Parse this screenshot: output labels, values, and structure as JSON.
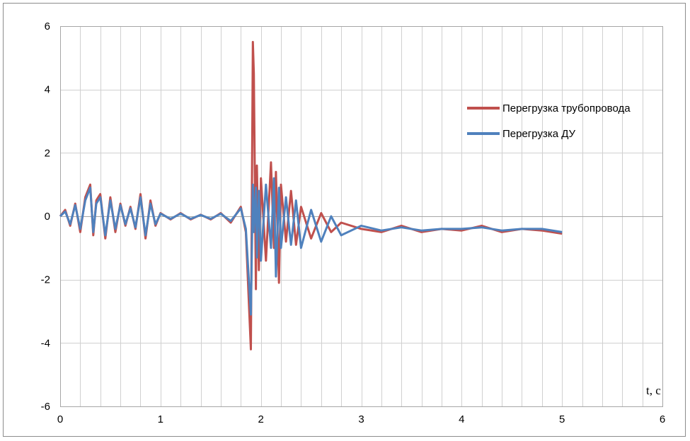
{
  "chart_data": {
    "type": "line",
    "title": "",
    "xlabel": "t, c",
    "ylabel": "",
    "xlim": [
      0,
      6
    ],
    "ylim": [
      -6,
      6
    ],
    "x_ticks": [
      "0",
      "1",
      "2",
      "3",
      "4",
      "5",
      "6"
    ],
    "y_ticks": [
      "6",
      "4",
      "2",
      "0",
      "-2",
      "-4",
      "-6"
    ],
    "x_minor_step": 0.2,
    "y_major_step": 2,
    "grid": true,
    "legend_position": "right",
    "series": [
      {
        "name": "Перегрузка трубопровода",
        "color": "#c0504d",
        "x": [
          0,
          0.05,
          0.1,
          0.15,
          0.2,
          0.25,
          0.3,
          0.33,
          0.36,
          0.4,
          0.45,
          0.5,
          0.55,
          0.6,
          0.65,
          0.7,
          0.75,
          0.8,
          0.85,
          0.9,
          0.95,
          1.0,
          1.1,
          1.2,
          1.3,
          1.4,
          1.5,
          1.6,
          1.7,
          1.8,
          1.85,
          1.9,
          1.92,
          1.93,
          1.95,
          1.96,
          1.98,
          2.0,
          2.05,
          2.1,
          2.13,
          2.15,
          2.18,
          2.2,
          2.25,
          2.3,
          2.35,
          2.4,
          2.5,
          2.6,
          2.7,
          2.8,
          3.0,
          3.2,
          3.4,
          3.6,
          3.8,
          4.0,
          4.2,
          4.4,
          4.6,
          4.8,
          5.0
        ],
        "y": [
          0,
          0.2,
          -0.3,
          0.4,
          -0.5,
          0.6,
          1.0,
          -0.6,
          0.5,
          0.7,
          -0.7,
          0.6,
          -0.5,
          0.4,
          -0.3,
          0.3,
          -0.4,
          0.7,
          -0.7,
          0.5,
          -0.3,
          0.1,
          -0.1,
          0.1,
          -0.1,
          0.05,
          -0.1,
          0.1,
          -0.2,
          0.3,
          -0.5,
          -4.2,
          5.5,
          4.5,
          -2.3,
          1.6,
          -1.7,
          1.2,
          -1.4,
          1.7,
          -1.0,
          1.4,
          -2.1,
          1.0,
          -0.8,
          0.8,
          -0.9,
          0.3,
          -0.7,
          0.1,
          -0.5,
          -0.2,
          -0.4,
          -0.5,
          -0.3,
          -0.5,
          -0.4,
          -0.45,
          -0.3,
          -0.5,
          -0.4,
          -0.45,
          -0.55
        ]
      },
      {
        "name": "Перегрузка ДУ",
        "color": "#4f81bd",
        "x": [
          0,
          0.05,
          0.1,
          0.15,
          0.2,
          0.25,
          0.3,
          0.33,
          0.36,
          0.4,
          0.45,
          0.5,
          0.55,
          0.6,
          0.65,
          0.7,
          0.75,
          0.8,
          0.85,
          0.9,
          0.95,
          1.0,
          1.1,
          1.2,
          1.3,
          1.4,
          1.5,
          1.6,
          1.7,
          1.8,
          1.85,
          1.9,
          1.92,
          1.93,
          1.95,
          1.96,
          1.98,
          2.0,
          2.05,
          2.1,
          2.13,
          2.15,
          2.18,
          2.2,
          2.25,
          2.3,
          2.35,
          2.4,
          2.5,
          2.6,
          2.7,
          2.8,
          3.0,
          3.2,
          3.4,
          3.6,
          3.8,
          4.0,
          4.2,
          4.4,
          4.6,
          4.8,
          5.0
        ],
        "y": [
          0,
          0.15,
          -0.25,
          0.35,
          -0.4,
          0.5,
          0.9,
          -0.5,
          0.4,
          0.6,
          -0.6,
          0.5,
          -0.4,
          0.35,
          -0.25,
          0.25,
          -0.35,
          0.6,
          -0.6,
          0.4,
          -0.25,
          0.08,
          -0.08,
          0.08,
          -0.08,
          0.04,
          -0.08,
          0.08,
          -0.15,
          0.25,
          -0.4,
          -3.1,
          1.0,
          -0.5,
          0.9,
          -1.3,
          0.8,
          -1.4,
          1.0,
          -1.0,
          1.2,
          -1.9,
          0.9,
          -1.0,
          0.6,
          -0.9,
          0.5,
          -1.0,
          0.2,
          -0.8,
          0.0,
          -0.6,
          -0.3,
          -0.45,
          -0.35,
          -0.45,
          -0.4,
          -0.4,
          -0.35,
          -0.45,
          -0.4,
          -0.4,
          -0.5
        ]
      }
    ]
  }
}
